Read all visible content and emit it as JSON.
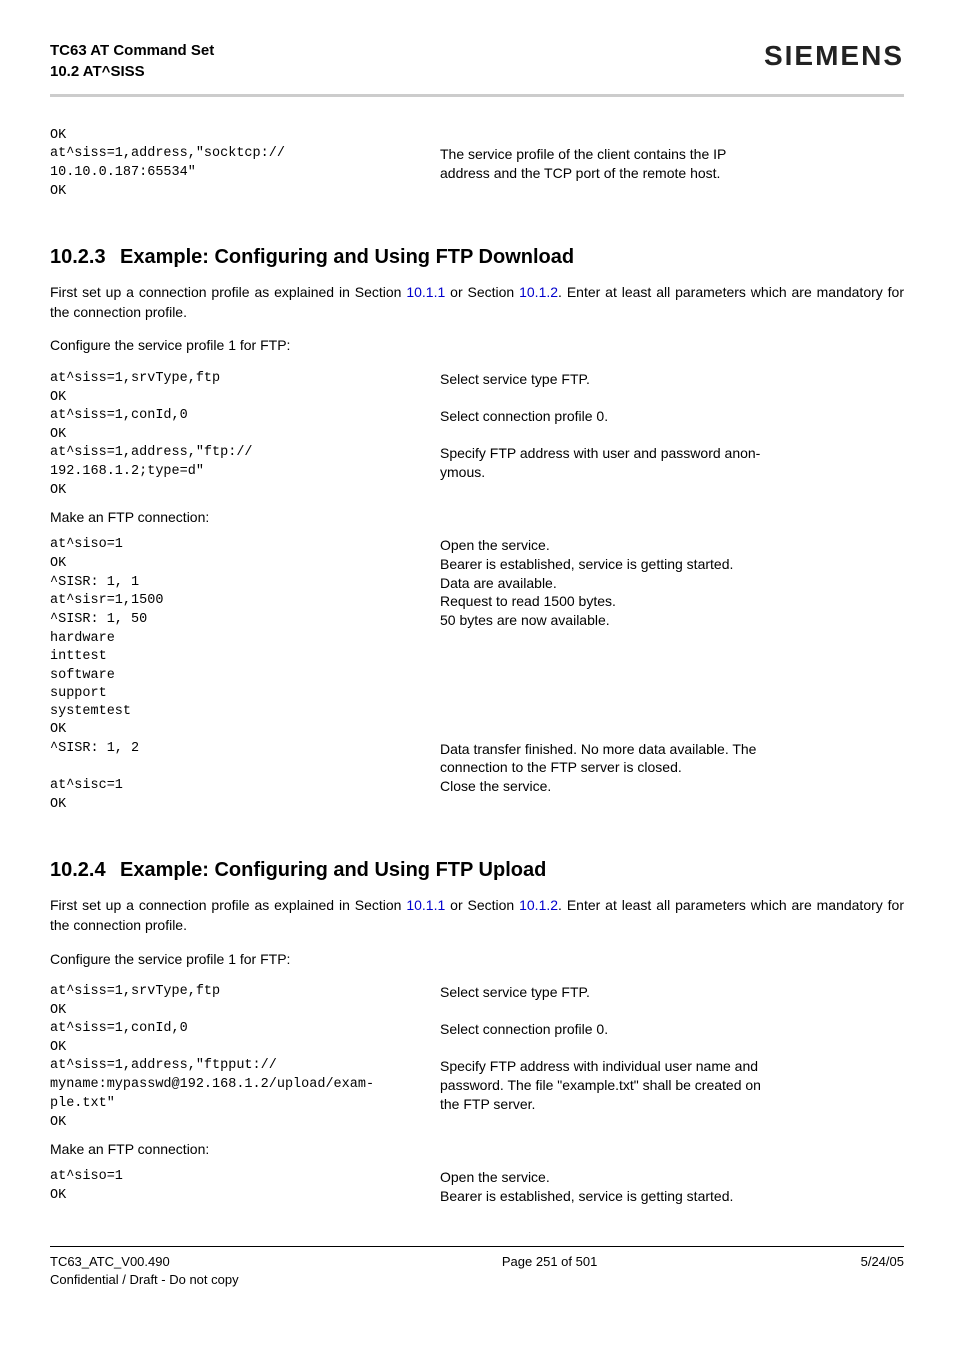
{
  "header": {
    "title1": "TC63 AT Command Set",
    "title2": "10.2 AT^SISS",
    "brand": "SIEMENS"
  },
  "intro_block": {
    "lines": [
      {
        "c": "OK",
        "d": ""
      },
      {
        "c": "at^siss=1,address,\"socktcp://",
        "d": "The service profile of the client contains the IP"
      },
      {
        "c": "10.10.0.187:65534\"",
        "d": "address and the TCP port of the remote host."
      },
      {
        "c": "OK",
        "d": ""
      }
    ]
  },
  "section1": {
    "num": "10.2.3",
    "title": "Example: Configuring and Using FTP Download",
    "p1a": "First set up a connection profile as explained in Section ",
    "link1": "10.1.1",
    "p1b": " or Section ",
    "link2": "10.1.2",
    "p1c": ". Enter at least all parameters which are mandatory for the connection profile.",
    "p2": "Configure the service profile 1 for FTP:",
    "config": [
      {
        "c": "at^siss=1,srvType,ftp",
        "d": "Select service type FTP."
      },
      {
        "c": "OK",
        "d": ""
      },
      {
        "c": "at^siss=1,conId,0",
        "d": "Select connection profile 0."
      },
      {
        "c": "OK",
        "d": ""
      },
      {
        "c": "at^siss=1,address,\"ftp://",
        "d": "Specify FTP address with user and password anon-"
      },
      {
        "c": "192.168.1.2;type=d\"",
        "d": "ymous."
      },
      {
        "c": "OK",
        "d": ""
      }
    ],
    "p3": "Make an FTP connection:",
    "conn": [
      {
        "c": "at^siso=1",
        "d": "Open the service."
      },
      {
        "c": "OK",
        "d": "Bearer is established, service is getting started."
      },
      {
        "c": "^SISR: 1, 1",
        "d": "Data are available."
      },
      {
        "c": "at^sisr=1,1500",
        "d": "Request to read 1500 bytes."
      },
      {
        "c": "^SISR: 1, 50",
        "d": "50 bytes are now available."
      },
      {
        "c": "hardware",
        "d": ""
      },
      {
        "c": "inttest",
        "d": ""
      },
      {
        "c": "software",
        "d": ""
      },
      {
        "c": "support",
        "d": ""
      },
      {
        "c": "systemtest",
        "d": ""
      },
      {
        "c": "OK",
        "d": ""
      },
      {
        "c": "^SISR: 1, 2",
        "d": "Data transfer finished. No more data available. The"
      },
      {
        "c": "",
        "d": "connection to the FTP server is closed."
      },
      {
        "c": "at^sisc=1",
        "d": "Close the service."
      },
      {
        "c": "OK",
        "d": ""
      }
    ]
  },
  "section2": {
    "num": "10.2.4",
    "title": "Example: Configuring and Using FTP Upload",
    "p1a": "First set up a connection profile as explained in Section ",
    "link1": "10.1.1",
    "p1b": " or Section ",
    "link2": "10.1.2",
    "p1c": ". Enter at least all parameters which are mandatory for the connection profile.",
    "p2": "Configure the service profile 1 for FTP:",
    "config": [
      {
        "c": "at^siss=1,srvType,ftp",
        "d": "Select service type FTP."
      },
      {
        "c": "OK",
        "d": ""
      },
      {
        "c": "at^siss=1,conId,0",
        "d": "Select connection profile 0."
      },
      {
        "c": "OK",
        "d": ""
      },
      {
        "c": "at^siss=1,address,\"ftpput://",
        "d": "Specify FTP address with individual user name and"
      },
      {
        "c": "myname:mypasswd@192.168.1.2/upload/exam-",
        "d": "password. The file \"example.txt\" shall be created on"
      },
      {
        "c": "ple.txt\"",
        "d": "the FTP server."
      },
      {
        "c": "OK",
        "d": ""
      }
    ],
    "p3": "Make an FTP connection:",
    "conn": [
      {
        "c": "at^siso=1",
        "d": "Open the service."
      },
      {
        "c": "OK",
        "d": "Bearer is established, service is getting started."
      }
    ]
  },
  "footer": {
    "left1": "TC63_ATC_V00.490",
    "left2": "Confidential / Draft - Do not copy",
    "center": "Page 251 of 501",
    "right": "5/24/05"
  }
}
